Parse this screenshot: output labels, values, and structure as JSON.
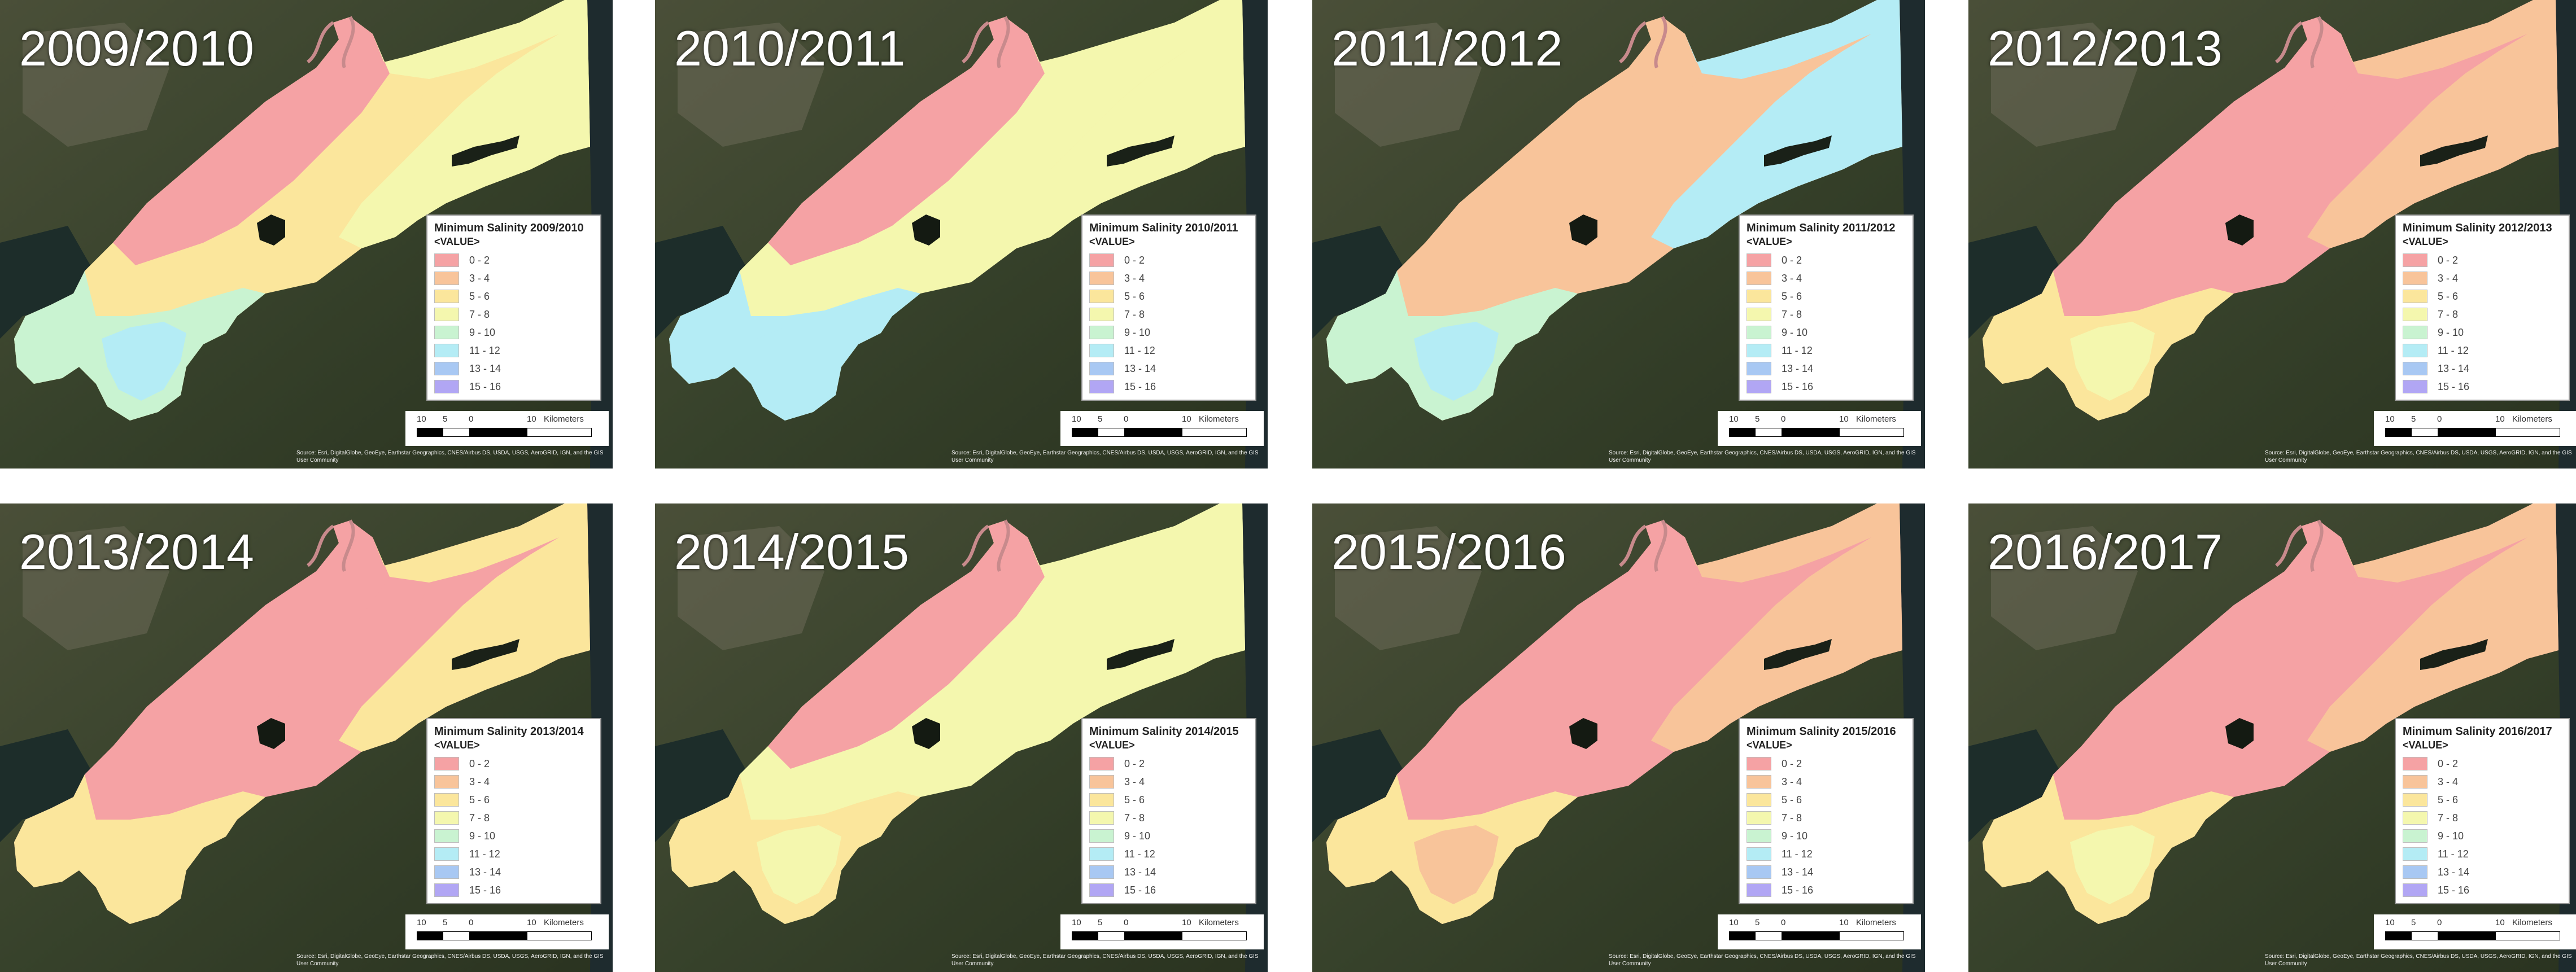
{
  "legend": {
    "field_label": "<VALUE>",
    "classes": [
      {
        "label": "0 - 2",
        "color": "#f5a2a4"
      },
      {
        "label": "3 - 4",
        "color": "#f8c49a"
      },
      {
        "label": "5 - 6",
        "color": "#fbe69c"
      },
      {
        "label": "7 - 8",
        "color": "#f4f7ae"
      },
      {
        "label": "9 - 10",
        "color": "#c9f3d1"
      },
      {
        "label": "11 - 12",
        "color": "#b4ecf5"
      },
      {
        "label": "13 - 14",
        "color": "#a8c8f3"
      },
      {
        "label": "15 - 16",
        "color": "#b1a6f4"
      }
    ]
  },
  "scale_bar": {
    "ticks": [
      "10",
      "5",
      "0",
      "10"
    ],
    "unit": "Kilometers"
  },
  "credits": "Source: Esri, DigitalGlobe, GeoEye, Earthstar Geographics, CNES/Airbus DS, USDA, USGS, AeroGRID, IGN, and the GIS User Community",
  "panels": [
    {
      "year": "2009/2010",
      "legend_title": "Minimum Salinity 2009/2010",
      "zones": {
        "ne_outer": 3,
        "ne_mid": 3,
        "ne_inner": 0,
        "center": 2,
        "sw_lobes": 4,
        "sw_core": 5
      }
    },
    {
      "year": "2010/2011",
      "legend_title": "Minimum Salinity 2010/2011",
      "zones": {
        "ne_outer": 3,
        "ne_mid": 2,
        "ne_inner": 0,
        "center": 3,
        "sw_lobes": 5,
        "sw_core": 5
      }
    },
    {
      "year": "2011/2012",
      "legend_title": "Minimum Salinity 2011/2012",
      "zones": {
        "ne_outer": 5,
        "ne_mid": 4,
        "ne_inner": 1,
        "center": 1,
        "sw_lobes": 4,
        "sw_core": 5
      }
    },
    {
      "year": "2012/2013",
      "legend_title": "Minimum Salinity 2012/2013",
      "zones": {
        "ne_outer": 1,
        "ne_mid": 0,
        "ne_inner": 0,
        "center": 0,
        "sw_lobes": 2,
        "sw_core": 3
      }
    },
    {
      "year": "2013/2014",
      "legend_title": "Minimum Salinity 2013/2014",
      "zones": {
        "ne_outer": 2,
        "ne_mid": 1,
        "ne_inner": 0,
        "center": 0,
        "sw_lobes": 2,
        "sw_core": 2
      }
    },
    {
      "year": "2014/2015",
      "legend_title": "Minimum Salinity 2014/2015",
      "zones": {
        "ne_outer": 3,
        "ne_mid": 3,
        "ne_inner": 0,
        "center": 3,
        "sw_lobes": 2,
        "sw_core": 3
      }
    },
    {
      "year": "2015/2016",
      "legend_title": "Minimum Salinity 2015/2016",
      "zones": {
        "ne_outer": 1,
        "ne_mid": 1,
        "ne_inner": 0,
        "center": 0,
        "sw_lobes": 2,
        "sw_core": 1
      }
    },
    {
      "year": "2016/2017",
      "legend_title": "Minimum Salinity 2016/2017",
      "zones": {
        "ne_outer": 1,
        "ne_mid": 0,
        "ne_inner": 0,
        "center": 0,
        "sw_lobes": 2,
        "sw_core": 3
      }
    }
  ]
}
